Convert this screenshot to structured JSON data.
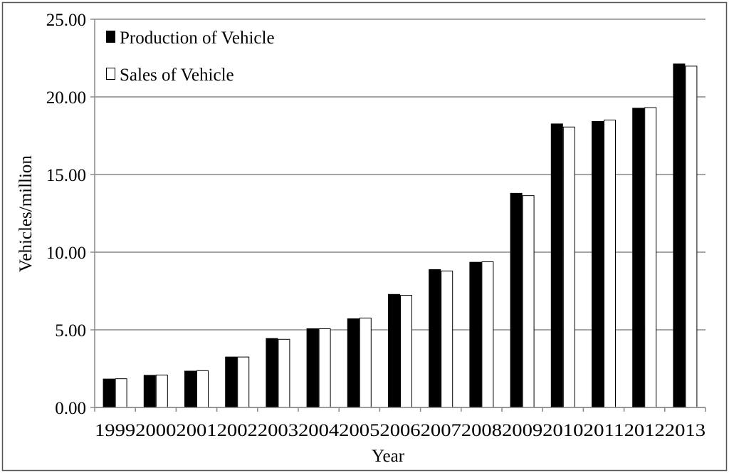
{
  "chart_data": {
    "type": "bar",
    "title": "",
    "xlabel": "Year",
    "ylabel": "Vehicles/million",
    "ylim": [
      0,
      25
    ],
    "yticks": [
      "0.00",
      "5.00",
      "10.00",
      "15.00",
      "20.00",
      "25.00"
    ],
    "grid": true,
    "legend_position": "top-left",
    "categories": [
      "1999",
      "2000",
      "2001",
      "2002",
      "2003",
      "2004",
      "2005",
      "2006",
      "2007",
      "2008",
      "2009",
      "2010",
      "2011",
      "2012",
      "2013"
    ],
    "series": [
      {
        "name": "Production of Vehicle",
        "color": "#000000",
        "values": [
          1.83,
          2.07,
          2.34,
          3.25,
          4.44,
          5.07,
          5.71,
          7.28,
          8.88,
          9.35,
          13.79,
          18.26,
          18.42,
          19.27,
          22.12
        ]
      },
      {
        "name": "Sales of Vehicle",
        "color": "#ffffff",
        "values": [
          1.85,
          2.09,
          2.37,
          3.25,
          4.39,
          5.07,
          5.76,
          7.22,
          8.79,
          9.38,
          13.64,
          18.06,
          18.51,
          19.31,
          21.98
        ]
      }
    ]
  }
}
